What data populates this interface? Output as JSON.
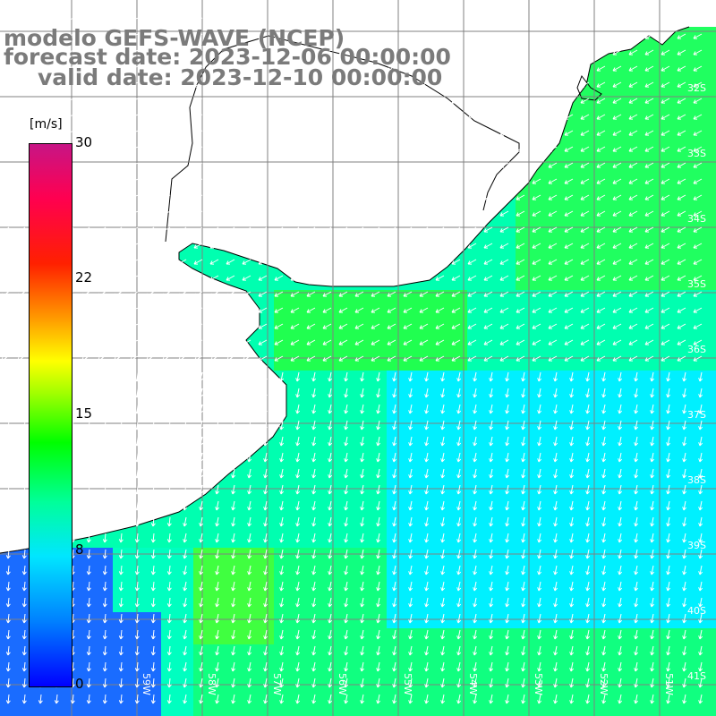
{
  "title": {
    "line1": "modelo GEFS-WAVE (NCEP)",
    "line2": "forecast date: 2023-12-06 00:00:00",
    "line3": "valid date: 2023-12-10 00:00:00"
  },
  "colorbar": {
    "unit": "[m/s]",
    "ticks": [
      "30",
      "22",
      "15",
      "8",
      "0"
    ],
    "stops": [
      "#0000ff",
      "#0080ff",
      "#00e6ff",
      "#00ff9a",
      "#00ff00",
      "#a0ff00",
      "#ffff00",
      "#ff9900",
      "#ff2000",
      "#ff0050",
      "#c71585"
    ]
  },
  "map": {
    "land_color": "#ffffff",
    "grid_color": "#808080",
    "lat_labels": [
      "32S",
      "33S",
      "34S",
      "35S",
      "36S",
      "37S",
      "38S",
      "39S",
      "40S",
      "41S"
    ],
    "lon_labels": [
      "59W",
      "58W",
      "57W",
      "56W",
      "55W",
      "54W",
      "53W",
      "52W",
      "51W"
    ]
  }
}
